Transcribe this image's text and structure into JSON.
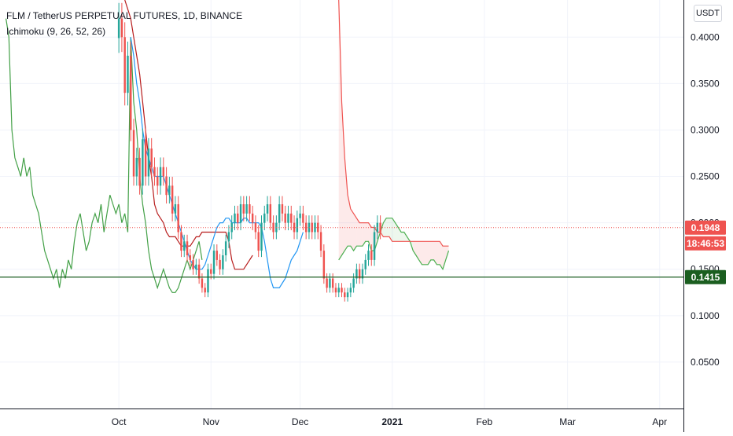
{
  "header": {
    "symbol_title": "FLM / TetherUS PERPETUAL FUTURES, 1D, BINANCE",
    "indicator_label": "Ichimoku (9, 26, 52, 26)",
    "currency_button": "USDT"
  },
  "colors": {
    "up_candle": "#26a69a",
    "down_candle": "#ef5350",
    "conversion_line": "#2196f3",
    "base_line": "#b71c1c",
    "lagging_span": "#43a047",
    "lead_a": "#4caf50",
    "lead_b": "#ef5350",
    "cloud_bull": "rgba(76,175,80,0.10)",
    "cloud_bear": "rgba(239,83,80,0.12)",
    "support_line": "#1b5e20",
    "last_price_line": "#ef5350",
    "grid": "#f0f3fa"
  },
  "chart_data": {
    "type": "line",
    "ylim": [
      0.0,
      0.44
    ],
    "y_ticks": [
      "0.0500",
      "0.1000",
      "0.1500",
      "0.2000",
      "0.2500",
      "0.3000",
      "0.3500",
      "0.4000"
    ],
    "x_ticks": [
      {
        "label": "Oct",
        "day": 0
      },
      {
        "label": "Nov",
        "day": 31
      },
      {
        "label": "Dec",
        "day": 61
      },
      {
        "label": "2021",
        "day": 92
      },
      {
        "label": "Feb",
        "day": 123
      },
      {
        "label": "Mar",
        "day": 151
      },
      {
        "label": "Apr",
        "day": 182
      }
    ],
    "xlim_days": [
      -40,
      190
    ],
    "price_labels": {
      "last_price": "0.1948",
      "countdown": "18:46:53",
      "support": "0.1415"
    },
    "last_price_value": 0.1948,
    "support_value": 0.1415,
    "candles_close": [
      0.42,
      0.4,
      0.34,
      0.38,
      0.3,
      0.25,
      0.27,
      0.24,
      0.29,
      0.25,
      0.28,
      0.26,
      0.25,
      0.24,
      0.26,
      0.25,
      0.23,
      0.24,
      0.21,
      0.22,
      0.19,
      0.17,
      0.18,
      0.165,
      0.16,
      0.15,
      0.155,
      0.14,
      0.13,
      0.125,
      0.15,
      0.145,
      0.17,
      0.16,
      0.15,
      0.165,
      0.18,
      0.19,
      0.2,
      0.21,
      0.2,
      0.22,
      0.21,
      0.22,
      0.21,
      0.2,
      0.19,
      0.17,
      0.2,
      0.21,
      0.22,
      0.2,
      0.19,
      0.2,
      0.22,
      0.21,
      0.2,
      0.21,
      0.2,
      0.19,
      0.205,
      0.21,
      0.2,
      0.19,
      0.2,
      0.19,
      0.2,
      0.19,
      0.17,
      0.14,
      0.13,
      0.14,
      0.13,
      0.125,
      0.13,
      0.125,
      0.12,
      0.125,
      0.13,
      0.14,
      0.15,
      0.14,
      0.15,
      0.16,
      0.17,
      0.16,
      0.19,
      0.2,
      0.19
    ],
    "conversion_line": [
      0.4,
      0.38,
      0.35,
      0.33,
      0.3,
      0.28,
      0.27,
      0.26,
      0.25,
      0.25,
      0.25,
      0.25,
      0.24,
      0.23,
      0.22,
      0.21,
      0.2,
      0.19,
      0.18,
      0.17,
      0.16,
      0.155,
      0.15,
      0.15,
      0.15,
      0.155,
      0.165,
      0.175,
      0.185,
      0.195,
      0.2,
      0.2,
      0.205,
      0.205,
      0.2,
      0.2,
      0.2,
      0.2,
      0.205,
      0.205,
      0.2,
      0.2,
      0.2,
      0.2,
      0.195,
      0.18,
      0.16,
      0.14,
      0.13,
      0.13,
      0.13,
      0.135,
      0.14,
      0.15,
      0.16,
      0.165,
      0.17,
      0.18,
      0.19
    ],
    "base_line": [
      0.44,
      0.43,
      0.42,
      0.4,
      0.38,
      0.36,
      0.33,
      0.3,
      0.27,
      0.25,
      0.22,
      0.21,
      0.205,
      0.2,
      0.19,
      0.185,
      0.185,
      0.185,
      0.18,
      0.175,
      0.175,
      0.175,
      0.175,
      0.18,
      0.185,
      0.185,
      0.19,
      0.19,
      0.19,
      0.19,
      0.19,
      0.19,
      0.19,
      0.19,
      0.19,
      0.18,
      0.16,
      0.15,
      0.15,
      0.15,
      0.15,
      0.155,
      0.16,
      0.165
    ],
    "lagging_span": [
      0.42,
      0.4,
      0.3,
      0.27,
      0.26,
      0.25,
      0.27,
      0.25,
      0.26,
      0.23,
      0.22,
      0.21,
      0.19,
      0.17,
      0.16,
      0.15,
      0.14,
      0.15,
      0.13,
      0.15,
      0.14,
      0.16,
      0.15,
      0.18,
      0.2,
      0.21,
      0.19,
      0.17,
      0.18,
      0.2,
      0.21,
      0.2,
      0.22,
      0.19,
      0.21,
      0.23,
      0.22,
      0.21,
      0.22,
      0.2,
      0.21,
      0.19,
      0.4,
      0.33,
      0.3,
      0.25,
      0.22,
      0.2,
      0.17,
      0.15,
      0.14,
      0.13,
      0.14,
      0.15,
      0.14,
      0.13,
      0.125,
      0.125,
      0.13,
      0.14,
      0.15,
      0.16,
      0.15,
      0.16,
      0.17,
      0.18,
      0.16
    ],
    "lead_a": [
      0.16,
      0.165,
      0.17,
      0.175,
      0.175,
      0.17,
      0.175,
      0.175,
      0.175,
      0.18,
      0.18,
      0.17,
      0.17,
      0.18,
      0.19,
      0.2,
      0.205,
      0.205,
      0.205,
      0.2,
      0.195,
      0.19,
      0.19,
      0.185,
      0.18,
      0.17,
      0.165,
      0.16,
      0.155,
      0.155,
      0.155,
      0.16,
      0.16,
      0.155,
      0.155,
      0.15,
      0.16,
      0.17
    ],
    "lead_b": [
      0.44,
      0.33,
      0.27,
      0.23,
      0.215,
      0.21,
      0.205,
      0.2,
      0.2,
      0.2,
      0.2,
      0.195,
      0.195,
      0.19,
      0.19,
      0.185,
      0.185,
      0.185,
      0.18,
      0.18,
      0.18,
      0.18,
      0.18,
      0.18,
      0.18,
      0.18,
      0.18,
      0.18,
      0.18,
      0.18,
      0.18,
      0.18,
      0.18,
      0.18,
      0.18,
      0.175,
      0.175,
      0.175
    ]
  }
}
